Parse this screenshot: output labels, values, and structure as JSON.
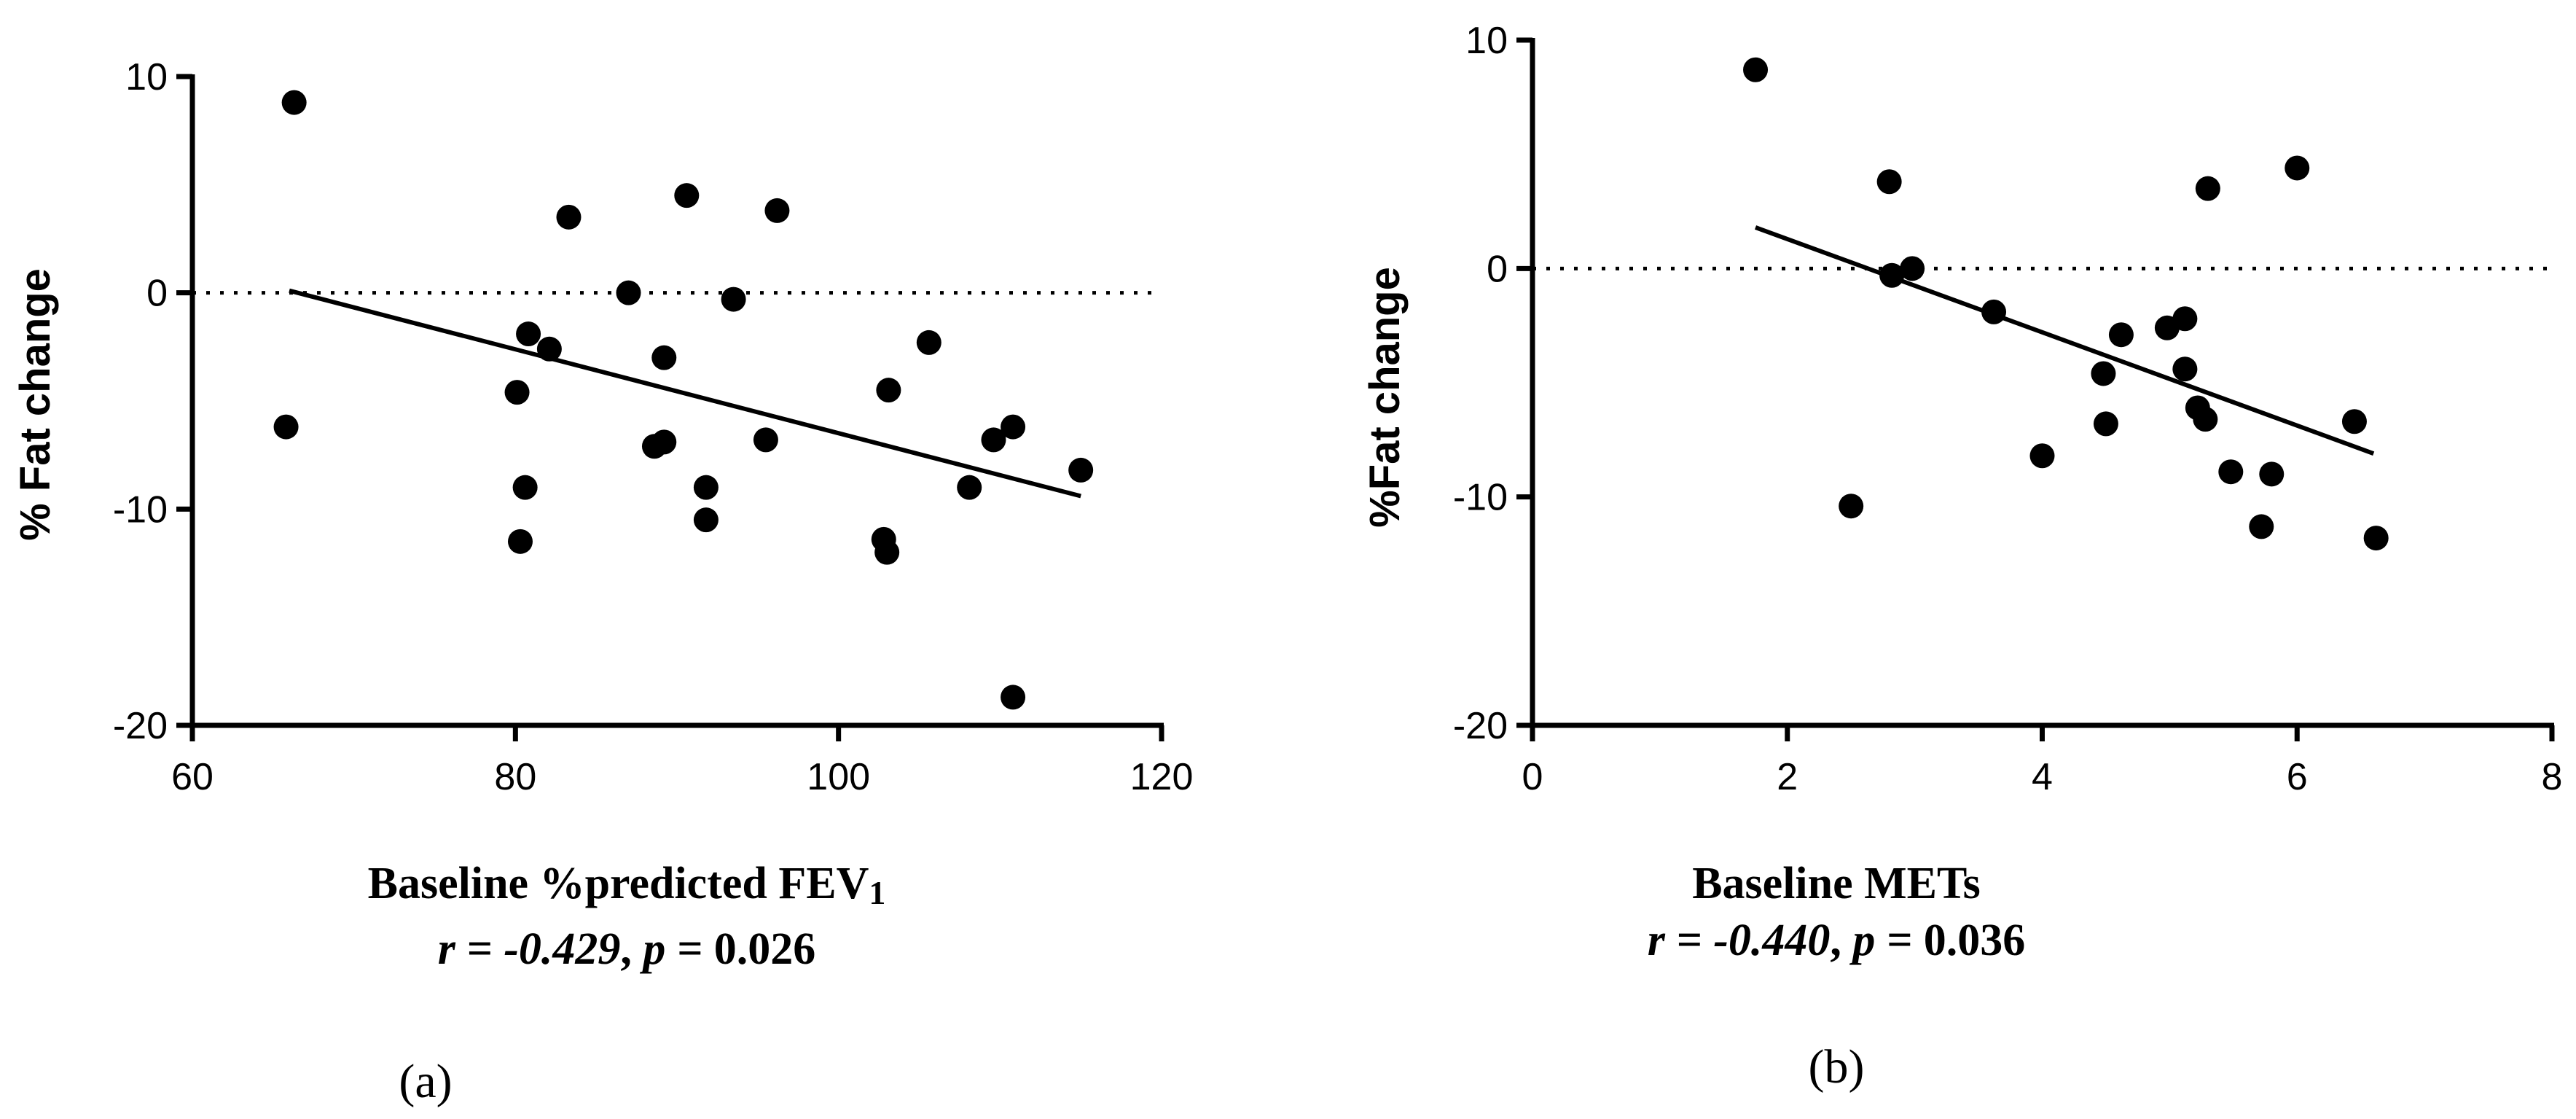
{
  "chart_data": [
    {
      "type": "scatter",
      "panel_label": "(a)",
      "xlabel_main": "Baseline %predicted FEV",
      "xlabel_sub": "1",
      "ylabel": "% Fat change",
      "stat": {
        "r_label": "r",
        "eq1": " = ",
        "r_value": "-0.429",
        "sep": ", ",
        "p_label": "p",
        "eq2": " = ",
        "p_value": "0.026"
      },
      "xlim": [
        60,
        120
      ],
      "ylim": [
        -20,
        10
      ],
      "xticks": [
        60,
        80,
        100,
        120
      ],
      "yticks": [
        -20,
        -10,
        0,
        10
      ],
      "reference_line_y": 0,
      "fit_line": {
        "x": [
          66,
          115
        ],
        "y": [
          0.1,
          -9.4
        ]
      },
      "points": [
        {
          "x": 66.3,
          "y": 8.8
        },
        {
          "x": 65.8,
          "y": -6.2
        },
        {
          "x": 80.1,
          "y": -4.6
        },
        {
          "x": 80.3,
          "y": -11.5
        },
        {
          "x": 80.6,
          "y": -9.0
        },
        {
          "x": 80.8,
          "y": -1.9
        },
        {
          "x": 82.1,
          "y": -2.6
        },
        {
          "x": 83.3,
          "y": 3.5
        },
        {
          "x": 87.0,
          "y": 0.0
        },
        {
          "x": 88.6,
          "y": -7.1
        },
        {
          "x": 89.2,
          "y": -3.0
        },
        {
          "x": 89.2,
          "y": -6.9
        },
        {
          "x": 90.6,
          "y": 4.5
        },
        {
          "x": 91.8,
          "y": -9.0
        },
        {
          "x": 91.8,
          "y": -10.5
        },
        {
          "x": 93.5,
          "y": -0.3
        },
        {
          "x": 95.5,
          "y": -6.8
        },
        {
          "x": 96.2,
          "y": 3.8
        },
        {
          "x": 102.8,
          "y": -11.4
        },
        {
          "x": 103.0,
          "y": -12.0
        },
        {
          "x": 103.1,
          "y": -4.5
        },
        {
          "x": 105.6,
          "y": -2.3
        },
        {
          "x": 108.1,
          "y": -9.0
        },
        {
          "x": 109.6,
          "y": -6.8
        },
        {
          "x": 110.8,
          "y": -6.2
        },
        {
          "x": 110.8,
          "y": -18.7
        },
        {
          "x": 115.0,
          "y": -8.2
        }
      ]
    },
    {
      "type": "scatter",
      "panel_label": "(b)",
      "xlabel_main": "Baseline METs",
      "xlabel_sub": "",
      "ylabel": "%Fat change",
      "stat": {
        "r_label": "r",
        "eq1": " = ",
        "r_value": "-0.440",
        "sep": ", ",
        "p_label": "p",
        "eq2": " = ",
        "p_value": "0.036"
      },
      "xlim": [
        0,
        8
      ],
      "ylim": [
        -20,
        10
      ],
      "xticks": [
        0,
        2,
        4,
        6,
        8
      ],
      "yticks": [
        -20,
        -10,
        0,
        10
      ],
      "reference_line_y": 0,
      "fit_line": {
        "x": [
          1.75,
          6.6
        ],
        "y": [
          1.8,
          -8.1
        ]
      },
      "points": [
        {
          "x": 1.75,
          "y": 8.7
        },
        {
          "x": 2.5,
          "y": -10.4
        },
        {
          "x": 2.8,
          "y": 3.8
        },
        {
          "x": 2.82,
          "y": -0.3
        },
        {
          "x": 2.98,
          "y": 0.0
        },
        {
          "x": 3.62,
          "y": -1.9
        },
        {
          "x": 4.0,
          "y": -8.2
        },
        {
          "x": 4.48,
          "y": -4.6
        },
        {
          "x": 4.5,
          "y": -6.8
        },
        {
          "x": 4.62,
          "y": -2.9
        },
        {
          "x": 4.98,
          "y": -2.6
        },
        {
          "x": 5.12,
          "y": -2.2
        },
        {
          "x": 5.12,
          "y": -4.4
        },
        {
          "x": 5.22,
          "y": -6.1
        },
        {
          "x": 5.28,
          "y": -6.6
        },
        {
          "x": 5.3,
          "y": 3.5
        },
        {
          "x": 5.48,
          "y": -8.9
        },
        {
          "x": 5.72,
          "y": -11.3
        },
        {
          "x": 5.8,
          "y": -9.0
        },
        {
          "x": 6.0,
          "y": 4.4
        },
        {
          "x": 6.45,
          "y": -6.7
        },
        {
          "x": 6.62,
          "y": -11.8
        }
      ]
    }
  ]
}
